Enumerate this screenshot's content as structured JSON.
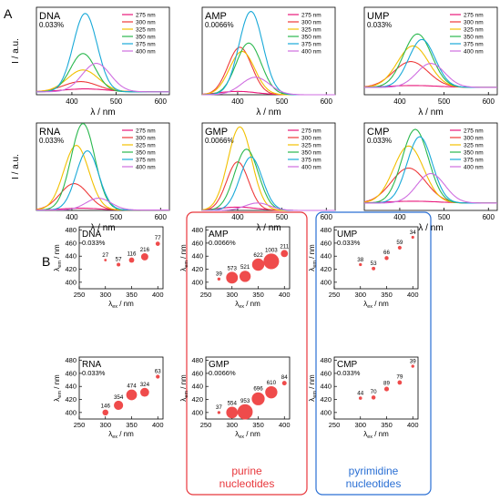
{
  "panel_labels": {
    "a": "A",
    "b": "B"
  },
  "spectra_x_label": "λ / nm",
  "spectra_y_label": "I / a.u.",
  "legend_entries": [
    "275 nm",
    "300 nm",
    "325 nm",
    "350 nm",
    "375 nm",
    "400 nm"
  ],
  "group_labels": {
    "purine_line1": "purine",
    "purine_line2": "nucleotides",
    "pyrimidine_line1": "pyrimidine",
    "pyrimidine_line2": "nucleotides"
  },
  "scatter_labels": {
    "y_main": "λ",
    "y_sub": "em",
    "y_unit": " / nm",
    "x_main": "λ",
    "x_sub": "ex",
    "x_unit": " / nm"
  },
  "colors": {
    "s275": "#e8177a",
    "s300": "#ee3a3a",
    "s325": "#f2c000",
    "s350": "#2ab84e",
    "s375": "#19a9d8",
    "s400": "#cf6de0",
    "bubble": "#ef4b4b",
    "purine_box": "#e8373c",
    "pyrimidine_box": "#2a6fd4"
  },
  "chart_data": [
    {
      "type": "line",
      "name": "DNA",
      "conc": "0.033%",
      "xlim": [
        320,
        620
      ],
      "xticks": [
        400,
        500,
        600
      ],
      "ylim": [
        0,
        240
      ],
      "baseline": 8,
      "series": [
        {
          "name": "275 nm",
          "color_key": "s275",
          "peak": 430,
          "amp": 8,
          "width": 70
        },
        {
          "name": "300 nm",
          "color_key": "s300",
          "peak": 420,
          "amp": 28,
          "width": 55
        },
        {
          "name": "325 nm",
          "color_key": "s325",
          "peak": 425,
          "amp": 60,
          "width": 50
        },
        {
          "name": "350 nm",
          "color_key": "s350",
          "peak": 425,
          "amp": 105,
          "width": 40
        },
        {
          "name": "375 nm",
          "color_key": "s375",
          "peak": 430,
          "amp": 215,
          "width": 38
        },
        {
          "name": "400 nm",
          "color_key": "s400",
          "peak": 455,
          "amp": 78,
          "width": 45
        }
      ]
    },
    {
      "type": "line",
      "name": "AMP",
      "conc": "0.0066%",
      "xlim": [
        320,
        620
      ],
      "xticks": [
        400,
        500,
        600
      ],
      "ylim": [
        0,
        1050
      ],
      "baseline": 0,
      "series": [
        {
          "name": "275 nm",
          "color_key": "s275",
          "peak": 400,
          "amp": 40,
          "width": 60
        },
        {
          "name": "300 nm",
          "color_key": "s300",
          "peak": 405,
          "amp": 570,
          "width": 38
        },
        {
          "name": "325 nm",
          "color_key": "s325",
          "peak": 410,
          "amp": 520,
          "width": 40
        },
        {
          "name": "350 nm",
          "color_key": "s350",
          "peak": 425,
          "amp": 620,
          "width": 40
        },
        {
          "name": "375 nm",
          "color_key": "s375",
          "peak": 430,
          "amp": 1000,
          "width": 38
        },
        {
          "name": "400 nm",
          "color_key": "s400",
          "peak": 440,
          "amp": 210,
          "width": 45
        }
      ]
    },
    {
      "type": "line",
      "name": "UMP",
      "conc": "0.033%",
      "xlim": [
        320,
        620
      ],
      "xticks": [
        400,
        500,
        600
      ],
      "ylim": [
        0,
        95
      ],
      "baseline": 8,
      "series": [
        {
          "name": "275 nm",
          "color_key": "s275",
          "peak": 430,
          "amp": 2,
          "width": 80
        },
        {
          "name": "300 nm",
          "color_key": "s300",
          "peak": 425,
          "amp": 28,
          "width": 55
        },
        {
          "name": "325 nm",
          "color_key": "s325",
          "peak": 430,
          "amp": 45,
          "width": 50
        },
        {
          "name": "350 nm",
          "color_key": "s350",
          "peak": 440,
          "amp": 58,
          "width": 45
        },
        {
          "name": "375 nm",
          "color_key": "s375",
          "peak": 450,
          "amp": 52,
          "width": 42
        },
        {
          "name": "400 nm",
          "color_key": "s400",
          "peak": 470,
          "amp": 26,
          "width": 45
        }
      ]
    },
    {
      "type": "line",
      "name": "RNA",
      "conc": "0.033%",
      "xlim": [
        320,
        620
      ],
      "xticks": [
        400,
        500,
        600
      ],
      "ylim": [
        0,
        480
      ],
      "baseline": 2,
      "series": [
        {
          "name": "275 nm",
          "color_key": "s275",
          "peak": 420,
          "amp": 10,
          "width": 60
        },
        {
          "name": "300 nm",
          "color_key": "s300",
          "peak": 405,
          "amp": 145,
          "width": 45
        },
        {
          "name": "325 nm",
          "color_key": "s325",
          "peak": 410,
          "amp": 355,
          "width": 40
        },
        {
          "name": "350 nm",
          "color_key": "s350",
          "peak": 425,
          "amp": 475,
          "width": 38
        },
        {
          "name": "375 nm",
          "color_key": "s375",
          "peak": 435,
          "amp": 325,
          "width": 36
        },
        {
          "name": "400 nm",
          "color_key": "s400",
          "peak": 460,
          "amp": 65,
          "width": 40
        }
      ]
    },
    {
      "type": "line",
      "name": "GMP",
      "conc": "0.0066%",
      "xlim": [
        320,
        620
      ],
      "xticks": [
        400,
        500,
        600
      ],
      "ylim": [
        0,
        1000
      ],
      "baseline": 0,
      "series": [
        {
          "name": "275 nm",
          "color_key": "s275",
          "peak": 400,
          "amp": 38,
          "width": 60
        },
        {
          "name": "300 nm",
          "color_key": "s300",
          "peak": 400,
          "amp": 555,
          "width": 35
        },
        {
          "name": "325 nm",
          "color_key": "s325",
          "peak": 405,
          "amp": 955,
          "width": 38
        },
        {
          "name": "350 nm",
          "color_key": "s350",
          "peak": 420,
          "amp": 700,
          "width": 38
        },
        {
          "name": "375 nm",
          "color_key": "s375",
          "peak": 430,
          "amp": 610,
          "width": 36
        },
        {
          "name": "400 nm",
          "color_key": "s400",
          "peak": 445,
          "amp": 85,
          "width": 40
        }
      ]
    },
    {
      "type": "line",
      "name": "CMP",
      "conc": "0.033%",
      "xlim": [
        320,
        620
      ],
      "xticks": [
        400,
        500,
        600
      ],
      "ylim": [
        0,
        95
      ],
      "baseline": 8,
      "series": [
        {
          "name": "275 nm",
          "color_key": "s275",
          "peak": 430,
          "amp": 2,
          "width": 80
        },
        {
          "name": "300 nm",
          "color_key": "s300",
          "peak": 420,
          "amp": 38,
          "width": 55
        },
        {
          "name": "325 nm",
          "color_key": "s325",
          "peak": 420,
          "amp": 62,
          "width": 48
        },
        {
          "name": "350 nm",
          "color_key": "s350",
          "peak": 435,
          "amp": 80,
          "width": 42
        },
        {
          "name": "375 nm",
          "color_key": "s375",
          "peak": 445,
          "amp": 72,
          "width": 40
        },
        {
          "name": "400 nm",
          "color_key": "s400",
          "peak": 470,
          "amp": 32,
          "width": 45
        }
      ]
    },
    {
      "type": "scatter",
      "name": "DNA",
      "conc": "0.033%",
      "xlim": [
        250,
        410
      ],
      "ylim": [
        390,
        485
      ],
      "xticks": [
        250,
        300,
        350,
        400
      ],
      "yticks": [
        400,
        420,
        440,
        460,
        480
      ],
      "points": [
        {
          "x": 300,
          "y": 434,
          "label": "27"
        },
        {
          "x": 325,
          "y": 427,
          "label": "57"
        },
        {
          "x": 350,
          "y": 434,
          "label": "116"
        },
        {
          "x": 375,
          "y": 439,
          "label": "216"
        },
        {
          "x": 400,
          "y": 459,
          "label": "77"
        }
      ]
    },
    {
      "type": "scatter",
      "name": "AMP",
      "conc": "0.0066%",
      "xlim": [
        250,
        410
      ],
      "ylim": [
        390,
        485
      ],
      "xticks": [
        250,
        300,
        350,
        400
      ],
      "yticks": [
        400,
        420,
        440,
        460,
        480
      ],
      "points": [
        {
          "x": 275,
          "y": 405,
          "label": "39"
        },
        {
          "x": 300,
          "y": 407,
          "label": "573"
        },
        {
          "x": 325,
          "y": 409,
          "label": "521"
        },
        {
          "x": 350,
          "y": 427,
          "label": "622"
        },
        {
          "x": 375,
          "y": 432,
          "label": "1003"
        },
        {
          "x": 400,
          "y": 444,
          "label": "211"
        }
      ]
    },
    {
      "type": "scatter",
      "name": "UMP",
      "conc": "0.033%",
      "xlim": [
        250,
        410
      ],
      "ylim": [
        390,
        485
      ],
      "xticks": [
        250,
        300,
        350,
        400
      ],
      "yticks": [
        400,
        420,
        440,
        460,
        480
      ],
      "points": [
        {
          "x": 300,
          "y": 427,
          "label": "38"
        },
        {
          "x": 325,
          "y": 421,
          "label": "53"
        },
        {
          "x": 350,
          "y": 437,
          "label": "66"
        },
        {
          "x": 375,
          "y": 453,
          "label": "59"
        },
        {
          "x": 400,
          "y": 469,
          "label": "34"
        }
      ]
    },
    {
      "type": "scatter",
      "name": "RNA",
      "conc": "0.033%",
      "xlim": [
        250,
        410
      ],
      "ylim": [
        390,
        485
      ],
      "xticks": [
        250,
        300,
        350,
        400
      ],
      "yticks": [
        400,
        420,
        440,
        460,
        480
      ],
      "points": [
        {
          "x": 300,
          "y": 400,
          "label": "146"
        },
        {
          "x": 325,
          "y": 411,
          "label": "354"
        },
        {
          "x": 350,
          "y": 427,
          "label": "474"
        },
        {
          "x": 375,
          "y": 431,
          "label": "324"
        },
        {
          "x": 400,
          "y": 455,
          "label": "63"
        }
      ]
    },
    {
      "type": "scatter",
      "name": "GMP",
      "conc": "0.0066%",
      "xlim": [
        250,
        410
      ],
      "ylim": [
        390,
        485
      ],
      "xticks": [
        250,
        300,
        350,
        400
      ],
      "yticks": [
        400,
        420,
        440,
        460,
        480
      ],
      "points": [
        {
          "x": 275,
          "y": 400,
          "label": "37"
        },
        {
          "x": 300,
          "y": 400,
          "label": "554"
        },
        {
          "x": 325,
          "y": 401,
          "label": "953"
        },
        {
          "x": 350,
          "y": 421,
          "label": "696"
        },
        {
          "x": 375,
          "y": 431,
          "label": "610"
        },
        {
          "x": 400,
          "y": 445,
          "label": "84"
        }
      ]
    },
    {
      "type": "scatter",
      "name": "CMP",
      "conc": "0.033%",
      "xlim": [
        250,
        410
      ],
      "ylim": [
        390,
        485
      ],
      "xticks": [
        250,
        300,
        350,
        400
      ],
      "yticks": [
        400,
        420,
        440,
        460,
        480
      ],
      "points": [
        {
          "x": 300,
          "y": 422,
          "label": "44"
        },
        {
          "x": 325,
          "y": 423,
          "label": "70"
        },
        {
          "x": 350,
          "y": 436,
          "label": "89"
        },
        {
          "x": 375,
          "y": 446,
          "label": "79"
        },
        {
          "x": 400,
          "y": 471,
          "label": "39"
        }
      ]
    }
  ]
}
